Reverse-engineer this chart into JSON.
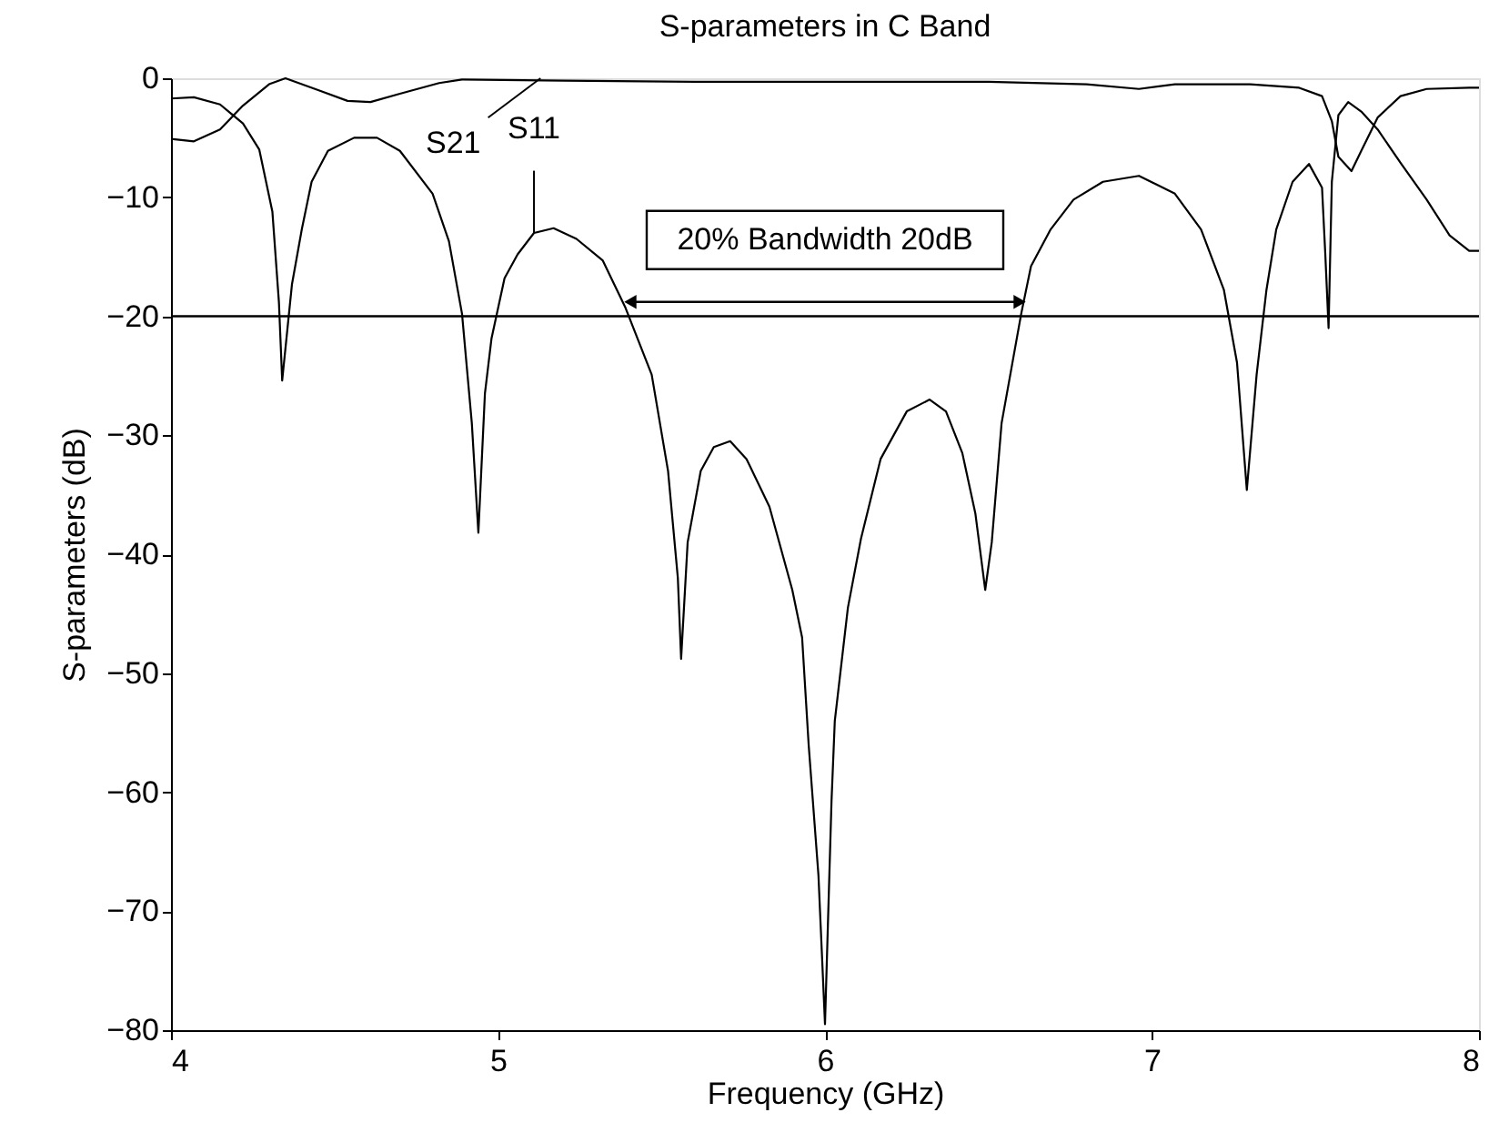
{
  "chart_data": {
    "type": "line",
    "title": "S-parameters in C Band",
    "xlabel": "Frequency (GHz)",
    "ylabel": "S-parameters (dB)",
    "xlim": [
      4,
      8
    ],
    "xticks": [
      4,
      5,
      6,
      7,
      8
    ],
    "ylim": [
      -80,
      0
    ],
    "yticks": [
      -80,
      -70,
      -60,
      -50,
      -40,
      -30,
      -20,
      -10,
      0
    ],
    "grid": false,
    "marker": "none",
    "line_style": "solid",
    "series": [
      {
        "color": "#000000",
        "x": [
          4.0,
          4.07,
          4.15,
          4.22,
          4.27,
          4.31,
          4.33,
          4.34,
          4.37,
          4.4,
          4.43,
          4.48,
          4.56,
          4.63,
          4.7,
          4.8,
          4.85,
          4.89,
          4.92,
          4.94,
          4.96,
          4.98,
          5.02,
          5.06,
          5.11,
          5.17,
          5.24,
          5.32,
          5.39,
          5.47,
          5.52,
          5.55,
          5.56,
          5.58,
          5.62,
          5.66,
          5.71,
          5.76,
          5.83,
          5.9,
          5.93,
          5.95,
          5.98,
          6.0,
          6.02,
          6.03,
          6.07,
          6.11,
          6.17,
          6.25,
          6.32,
          6.37,
          6.42,
          6.46,
          6.49,
          6.51,
          6.54,
          6.6,
          6.63,
          6.69,
          6.76,
          6.85,
          6.96,
          7.07,
          7.15,
          7.22,
          7.26,
          7.29,
          7.32,
          7.35,
          7.38,
          7.43,
          7.48,
          7.52,
          7.53,
          7.54,
          7.55,
          7.57,
          7.6,
          7.64,
          7.69,
          7.76,
          7.84,
          7.91,
          7.97,
          8.0
        ],
        "values": [
          -1.7,
          -1.6,
          -2.2,
          -3.8,
          -6,
          -11.2,
          -18.8,
          -25.4,
          -17.3,
          -12.7,
          -8.7,
          -6.1,
          -5.0,
          -5.0,
          -6.1,
          -9.7,
          -13.7,
          -19.8,
          -29,
          -38.2,
          -26.5,
          -21.9,
          -16.8,
          -14.8,
          -13,
          -12.6,
          -13.5,
          -15.3,
          -19.3,
          -24.9,
          -33,
          -42,
          -48.8,
          -39,
          -33,
          -31,
          -30.5,
          -32,
          -36,
          -43,
          -47,
          -56,
          -67,
          -79.5,
          -60.7,
          -54,
          -44.5,
          -38.7,
          -32,
          -28,
          -27,
          -28,
          -31.5,
          -36.6,
          -43,
          -39,
          -29,
          -19.8,
          -15.8,
          -12.7,
          -10.2,
          -8.7,
          -8.2,
          -9.7,
          -12.7,
          -17.8,
          -23.9,
          -34.6,
          -24.9,
          -17.8,
          -12.7,
          -8.7,
          -7.2,
          -9.2,
          -14.8,
          -21,
          -8.7,
          -3.1,
          -2.0,
          -2.8,
          -4.3,
          -7.1,
          -10.2,
          -13.2,
          -14.5,
          -14.5
        ]
      },
      {
        "color": "#000000",
        "x": [
          4.0,
          4.07,
          4.15,
          4.22,
          4.3,
          4.35,
          4.45,
          4.54,
          4.61,
          4.7,
          4.82,
          4.89,
          5.2,
          5.6,
          6.0,
          6.5,
          6.8,
          6.96,
          7.07,
          7.3,
          7.45,
          7.52,
          7.55,
          7.57,
          7.61,
          7.64,
          7.69,
          7.76,
          7.84,
          7.97,
          8.0
        ],
        "values": [
          -5.1,
          -5.3,
          -4.3,
          -2.3,
          -0.5,
          0,
          -1,
          -1.9,
          -2,
          -1.3,
          -0.4,
          -0.1,
          -0.2,
          -0.3,
          -0.3,
          -0.3,
          -0.5,
          -0.9,
          -0.5,
          -0.5,
          -0.8,
          -1.5,
          -3.6,
          -6.6,
          -7.8,
          -6.1,
          -3.3,
          -1.5,
          -0.9,
          -0.8,
          -0.8
        ]
      }
    ],
    "ref_lines": [
      {
        "axis": "y",
        "value": -20,
        "color": "#000000"
      }
    ],
    "annotations": [
      {
        "text": "S21",
        "x": 5.13,
        "y": 0
      },
      {
        "text": "S11",
        "x": 5.11,
        "y": -13
      },
      "20% Bandwidth 20dB"
    ]
  }
}
